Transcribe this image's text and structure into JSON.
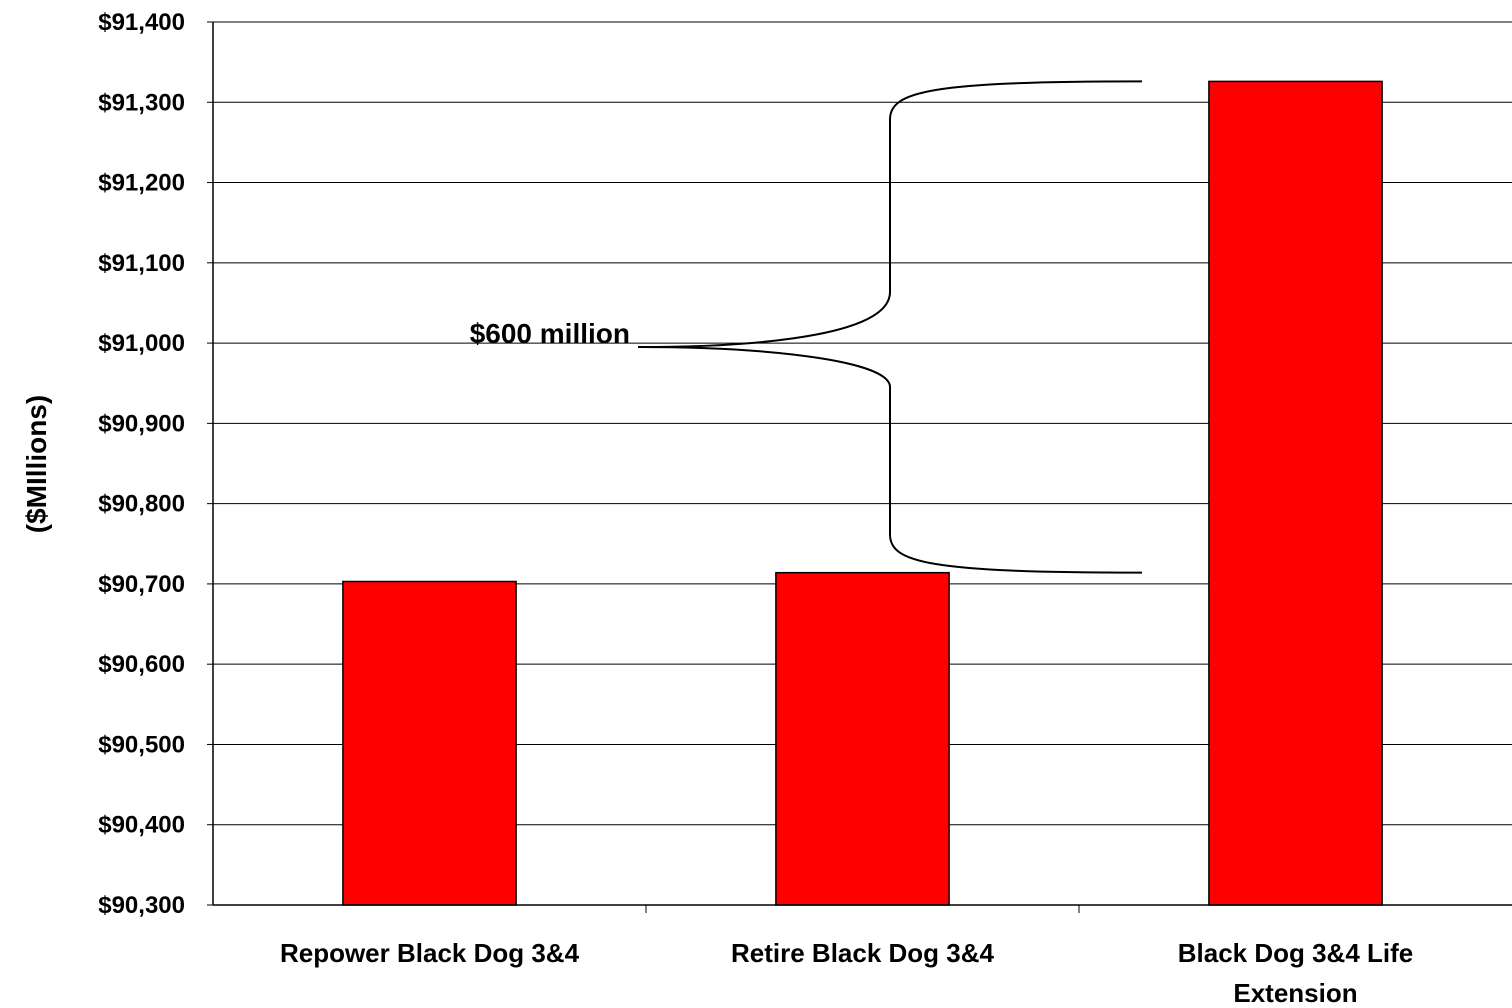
{
  "chart_data": {
    "type": "bar",
    "title": "",
    "xlabel": "",
    "ylabel": "($MIllions)",
    "ylim": [
      90300,
      91400
    ],
    "ytick_step": 100,
    "ytick_labels": [
      "$90,300",
      "$90,400",
      "$90,500",
      "$90,600",
      "$90,700",
      "$90,800",
      "$90,900",
      "$91,000",
      "$91,100",
      "$91,200",
      "$91,300",
      "$91,400"
    ],
    "categories": [
      [
        "Repower Black Dog 3&4"
      ],
      [
        "Retire Black Dog 3&4"
      ],
      [
        "Black Dog 3&4 Life",
        "Extension"
      ]
    ],
    "values": [
      90703,
      90714,
      91326
    ],
    "grid": true,
    "legend": "none",
    "bar_color": "#ff0000",
    "annotation": {
      "text": "$600 million",
      "span": [
        90714,
        91326
      ]
    }
  }
}
